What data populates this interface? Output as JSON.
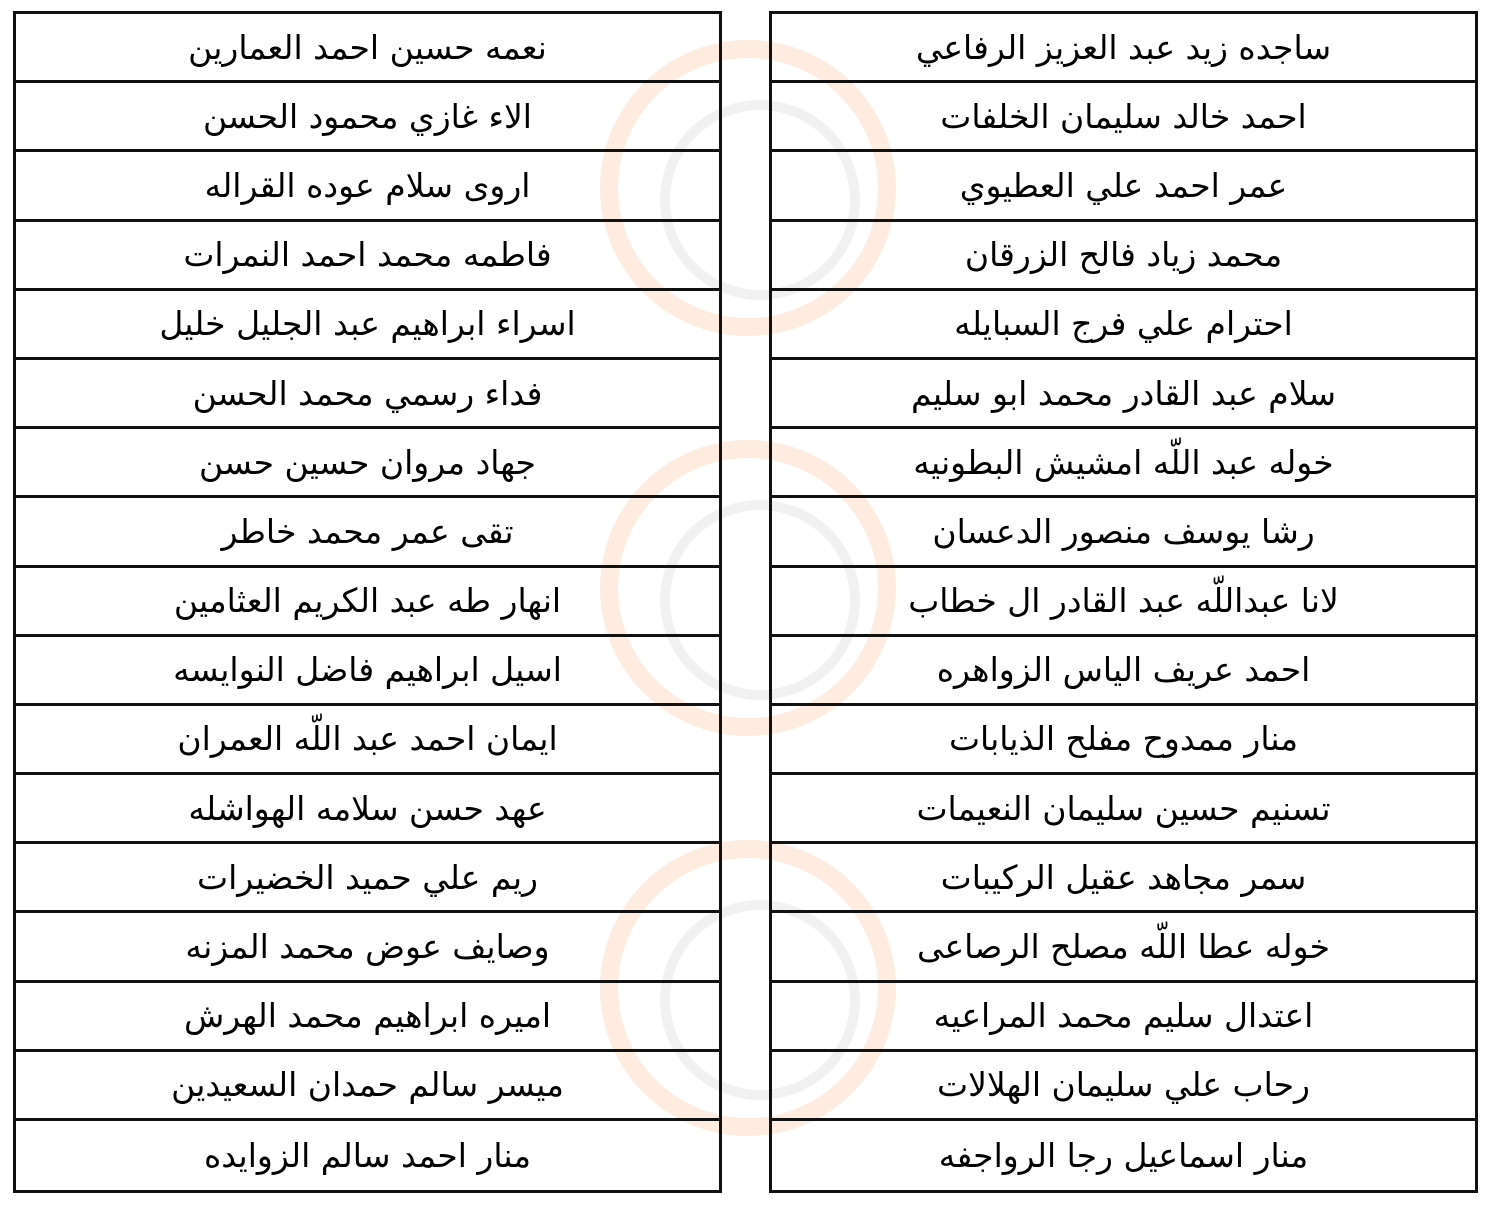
{
  "right_table": {
    "names": [
      "ساجده زيد عبد العزيز الرفاعي",
      "احمد خالد سليمان الخلفات",
      "عمر احمد علي العطيوي",
      "محمد زياد فالح الزرقان",
      "احترام علي فرج السبايله",
      "سلام عبد  القادر محمد ابو سليم",
      "خوله عبد اللّه امشيش البطونيه",
      "رشا يوسف منصور الدعسان",
      "لانا عبداللّه عبد القادر ال خطاب",
      "احمد عريف الياس الزواهره",
      "منار ممدوح مفلح الذيابات",
      "تسنيم حسين سليمان النعيمات",
      "سمر مجاهد عقيل الركيبات",
      "خوله عطا اللّه مصلح الرصاعى",
      "اعتدال سليم محمد المراعيه",
      "رحاب علي سليمان الهلالات",
      "منار اسماعيل رجا الرواجفه"
    ]
  },
  "left_table": {
    "names": [
      "نعمه حسين احمد العمارين",
      "الاء غازي محمود الحسن",
      "اروى سلام عوده القراله",
      "فاطمه محمد احمد النمرات",
      "اسراء ابراهيم عبد الجليل خليل",
      "فداء رسمي محمد الحسن",
      "جهاد مروان حسين حسن",
      "تقى عمر محمد خاطر",
      "انهار طه عبد الكريم العثامين",
      "اسيل ابراهيم فاضل النوايسه",
      "ايمان احمد عبد اللّه العمران",
      "عهد حسن سلامه الهواشله",
      "ريم علي حميد الخضيرات",
      "وصايف عوض محمد المزنه",
      "اميره ابراهيم محمد الهرش",
      "ميسر سالم حمدان السعيدين",
      "منار احمد سالم الزوايده"
    ]
  },
  "colors": {
    "border": "#111111",
    "text": "#000000",
    "watermark_accent": "#f5aa6e"
  }
}
